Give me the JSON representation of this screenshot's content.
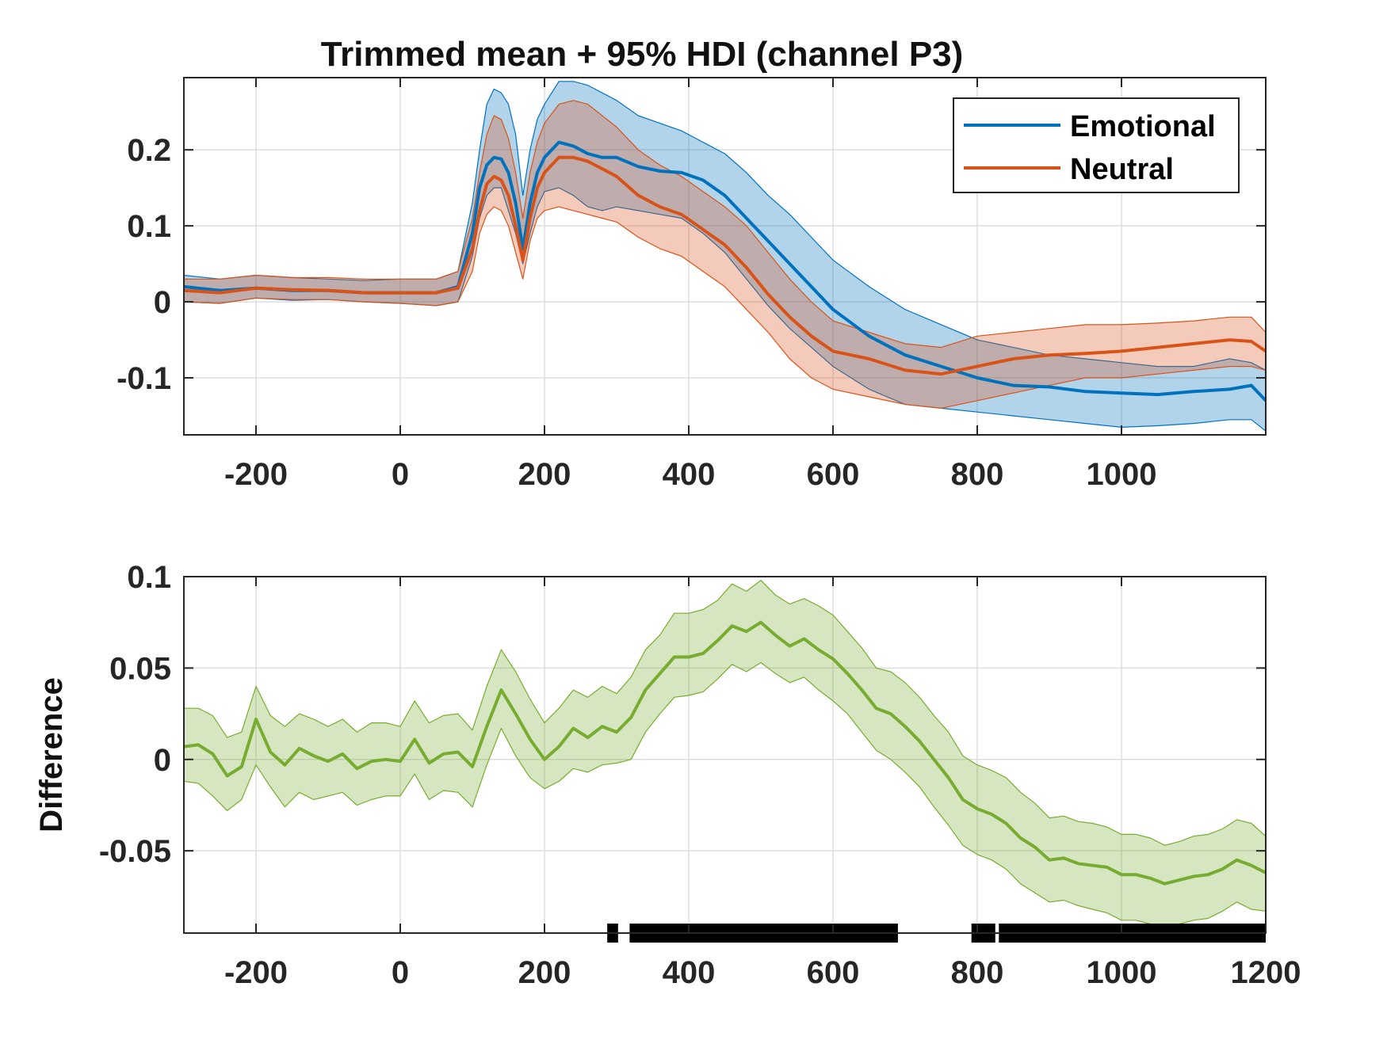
{
  "chart_data": [
    {
      "type": "line",
      "title": "Trimmed mean + 95% HDI (channel P3)",
      "xlabel": "",
      "ylabel": "",
      "xlim": [
        -300,
        1200
      ],
      "ylim": [
        -0.175,
        0.295
      ],
      "xticks": [
        -200,
        0,
        200,
        400,
        600,
        800,
        1000
      ],
      "xtick_labels": [
        "-200",
        "0",
        "200",
        "400",
        "600",
        "800",
        "1000"
      ],
      "yticks": [
        0.2,
        0.1,
        0,
        -0.1
      ],
      "ytick_labels": [
        "0.2",
        "0.1",
        "0",
        "-0.1"
      ],
      "grid": true,
      "legend_position": "top-right",
      "x": [
        -300,
        -250,
        -200,
        -150,
        -100,
        -50,
        0,
        50,
        80,
        100,
        110,
        120,
        130,
        140,
        150,
        160,
        170,
        180,
        190,
        200,
        220,
        240,
        260,
        280,
        300,
        330,
        360,
        390,
        420,
        450,
        480,
        510,
        540,
        570,
        600,
        650,
        700,
        750,
        800,
        850,
        900,
        950,
        1000,
        1050,
        1100,
        1150,
        1180,
        1200
      ],
      "series": [
        {
          "name": "Emotional",
          "color": "#0072BD",
          "mean": [
            0.02,
            0.015,
            0.018,
            0.015,
            0.015,
            0.012,
            0.012,
            0.012,
            0.02,
            0.09,
            0.15,
            0.18,
            0.19,
            0.188,
            0.17,
            0.13,
            0.07,
            0.13,
            0.17,
            0.19,
            0.21,
            0.205,
            0.195,
            0.19,
            0.19,
            0.178,
            0.172,
            0.17,
            0.16,
            0.14,
            0.11,
            0.08,
            0.05,
            0.02,
            -0.01,
            -0.045,
            -0.07,
            -0.085,
            -0.1,
            -0.11,
            -0.112,
            -0.118,
            -0.12,
            -0.122,
            -0.118,
            -0.115,
            -0.11,
            -0.13
          ],
          "lower": [
            0.0,
            -0.002,
            0.005,
            0.002,
            0.003,
            0.0,
            -0.002,
            -0.005,
            0.0,
            0.06,
            0.11,
            0.14,
            0.15,
            0.15,
            0.12,
            0.09,
            0.05,
            0.09,
            0.125,
            0.145,
            0.15,
            0.14,
            0.125,
            0.12,
            0.125,
            0.12,
            0.115,
            0.11,
            0.09,
            0.065,
            0.03,
            -0.005,
            -0.035,
            -0.06,
            -0.085,
            -0.115,
            -0.135,
            -0.14,
            -0.145,
            -0.15,
            -0.155,
            -0.16,
            -0.165,
            -0.163,
            -0.16,
            -0.155,
            -0.155,
            -0.17
          ],
          "upper": [
            0.035,
            0.03,
            0.035,
            0.032,
            0.03,
            0.028,
            0.03,
            0.03,
            0.04,
            0.13,
            0.2,
            0.26,
            0.28,
            0.275,
            0.26,
            0.22,
            0.14,
            0.2,
            0.24,
            0.26,
            0.29,
            0.29,
            0.285,
            0.275,
            0.265,
            0.245,
            0.235,
            0.225,
            0.21,
            0.195,
            0.17,
            0.14,
            0.115,
            0.085,
            0.055,
            0.02,
            -0.01,
            -0.03,
            -0.05,
            -0.06,
            -0.07,
            -0.075,
            -0.08,
            -0.085,
            -0.085,
            -0.075,
            -0.08,
            -0.09
          ]
        },
        {
          "name": "Neutral",
          "color": "#D95319",
          "mean": [
            0.015,
            0.012,
            0.018,
            0.016,
            0.015,
            0.012,
            0.012,
            0.012,
            0.018,
            0.07,
            0.12,
            0.155,
            0.165,
            0.16,
            0.14,
            0.1,
            0.055,
            0.11,
            0.15,
            0.17,
            0.19,
            0.19,
            0.185,
            0.175,
            0.165,
            0.14,
            0.125,
            0.115,
            0.095,
            0.075,
            0.045,
            0.01,
            -0.02,
            -0.045,
            -0.065,
            -0.075,
            -0.09,
            -0.095,
            -0.085,
            -0.075,
            -0.07,
            -0.068,
            -0.065,
            -0.06,
            -0.055,
            -0.05,
            -0.052,
            -0.065
          ],
          "lower": [
            0.0,
            -0.002,
            0.005,
            0.003,
            0.003,
            0.0,
            -0.002,
            -0.005,
            0.0,
            0.04,
            0.09,
            0.115,
            0.125,
            0.12,
            0.1,
            0.065,
            0.03,
            0.08,
            0.11,
            0.12,
            0.125,
            0.12,
            0.115,
            0.11,
            0.105,
            0.085,
            0.07,
            0.06,
            0.04,
            0.02,
            -0.01,
            -0.04,
            -0.075,
            -0.1,
            -0.115,
            -0.125,
            -0.135,
            -0.14,
            -0.13,
            -0.12,
            -0.11,
            -0.1,
            -0.1,
            -0.095,
            -0.09,
            -0.085,
            -0.085,
            -0.09
          ],
          "upper": [
            0.03,
            0.03,
            0.035,
            0.032,
            0.032,
            0.03,
            0.03,
            0.03,
            0.04,
            0.11,
            0.17,
            0.22,
            0.245,
            0.24,
            0.215,
            0.17,
            0.11,
            0.17,
            0.21,
            0.235,
            0.26,
            0.265,
            0.26,
            0.245,
            0.23,
            0.2,
            0.18,
            0.165,
            0.145,
            0.125,
            0.1,
            0.065,
            0.03,
            0.0,
            -0.025,
            -0.04,
            -0.055,
            -0.06,
            -0.045,
            -0.04,
            -0.035,
            -0.03,
            -0.03,
            -0.028,
            -0.025,
            -0.02,
            -0.02,
            -0.04
          ]
        }
      ]
    },
    {
      "type": "line",
      "title": "",
      "xlabel": "",
      "ylabel": "Difference",
      "xlim": [
        -300,
        1200
      ],
      "ylim": [
        -0.095,
        0.1
      ],
      "xticks": [
        -200,
        0,
        200,
        400,
        600,
        800,
        1000,
        1200
      ],
      "xtick_labels": [
        "-200",
        "0",
        "200",
        "400",
        "600",
        "800",
        "1000",
        "1200"
      ],
      "yticks": [
        0.1,
        0.05,
        0,
        -0.05
      ],
      "ytick_labels": [
        "0.1",
        "0.05",
        "0",
        "-0.05"
      ],
      "grid": true,
      "x": [
        -300,
        -280,
        -260,
        -240,
        -220,
        -200,
        -180,
        -160,
        -140,
        -120,
        -100,
        -80,
        -60,
        -40,
        -20,
        0,
        20,
        40,
        60,
        80,
        100,
        120,
        140,
        160,
        180,
        200,
        220,
        240,
        260,
        280,
        300,
        320,
        340,
        360,
        380,
        400,
        420,
        440,
        460,
        480,
        500,
        520,
        540,
        560,
        580,
        600,
        620,
        640,
        660,
        680,
        700,
        720,
        740,
        760,
        780,
        800,
        820,
        840,
        860,
        880,
        900,
        920,
        940,
        960,
        980,
        1000,
        1020,
        1040,
        1060,
        1080,
        1100,
        1120,
        1140,
        1160,
        1180,
        1200
      ],
      "series": [
        {
          "name": "",
          "color": "#77AC30",
          "mean": [
            0.007,
            0.008,
            0.003,
            -0.009,
            -0.004,
            0.022,
            0.004,
            -0.003,
            0.006,
            0.002,
            -0.001,
            0.003,
            -0.005,
            -0.001,
            0.0,
            -0.001,
            0.011,
            -0.002,
            0.003,
            0.004,
            -0.004,
            0.018,
            0.038,
            0.025,
            0.011,
            0.0,
            0.007,
            0.017,
            0.012,
            0.018,
            0.015,
            0.023,
            0.038,
            0.047,
            0.056,
            0.056,
            0.058,
            0.065,
            0.073,
            0.07,
            0.075,
            0.068,
            0.062,
            0.066,
            0.06,
            0.055,
            0.047,
            0.038,
            0.028,
            0.025,
            0.018,
            0.01,
            0.0,
            -0.01,
            -0.022,
            -0.027,
            -0.03,
            -0.035,
            -0.043,
            -0.048,
            -0.055,
            -0.054,
            -0.057,
            -0.058,
            -0.059,
            -0.063,
            -0.063,
            -0.065,
            -0.068,
            -0.066,
            -0.064,
            -0.063,
            -0.06,
            -0.055,
            -0.058,
            -0.062
          ],
          "lower": [
            -0.012,
            -0.013,
            -0.02,
            -0.028,
            -0.022,
            -0.003,
            -0.015,
            -0.026,
            -0.018,
            -0.022,
            -0.02,
            -0.018,
            -0.025,
            -0.022,
            -0.02,
            -0.02,
            -0.008,
            -0.022,
            -0.017,
            -0.018,
            -0.026,
            -0.003,
            0.017,
            0.002,
            -0.01,
            -0.016,
            -0.012,
            -0.005,
            -0.007,
            -0.003,
            -0.002,
            0.0,
            0.015,
            0.025,
            0.034,
            0.035,
            0.037,
            0.044,
            0.052,
            0.048,
            0.053,
            0.047,
            0.042,
            0.045,
            0.038,
            0.032,
            0.025,
            0.015,
            0.005,
            0.0,
            -0.007,
            -0.015,
            -0.026,
            -0.036,
            -0.047,
            -0.052,
            -0.055,
            -0.06,
            -0.068,
            -0.073,
            -0.078,
            -0.077,
            -0.08,
            -0.082,
            -0.084,
            -0.088,
            -0.088,
            -0.09,
            -0.092,
            -0.09,
            -0.088,
            -0.087,
            -0.083,
            -0.078,
            -0.082,
            -0.083
          ],
          "upper": [
            0.028,
            0.028,
            0.024,
            0.012,
            0.015,
            0.04,
            0.024,
            0.018,
            0.025,
            0.022,
            0.018,
            0.022,
            0.015,
            0.02,
            0.02,
            0.018,
            0.032,
            0.02,
            0.024,
            0.025,
            0.016,
            0.04,
            0.06,
            0.048,
            0.033,
            0.02,
            0.028,
            0.038,
            0.034,
            0.04,
            0.036,
            0.045,
            0.06,
            0.068,
            0.08,
            0.08,
            0.082,
            0.087,
            0.096,
            0.092,
            0.098,
            0.09,
            0.085,
            0.088,
            0.084,
            0.079,
            0.07,
            0.061,
            0.05,
            0.048,
            0.042,
            0.034,
            0.024,
            0.015,
            0.002,
            -0.003,
            -0.006,
            -0.01,
            -0.018,
            -0.024,
            -0.032,
            -0.031,
            -0.034,
            -0.035,
            -0.037,
            -0.041,
            -0.041,
            -0.043,
            -0.047,
            -0.045,
            -0.042,
            -0.041,
            -0.038,
            -0.033,
            -0.035,
            -0.042
          ]
        }
      ],
      "significance_intervals": [
        [
          287,
          302
        ],
        [
          318,
          690
        ],
        [
          792,
          825
        ],
        [
          830,
          1200
        ]
      ]
    }
  ]
}
